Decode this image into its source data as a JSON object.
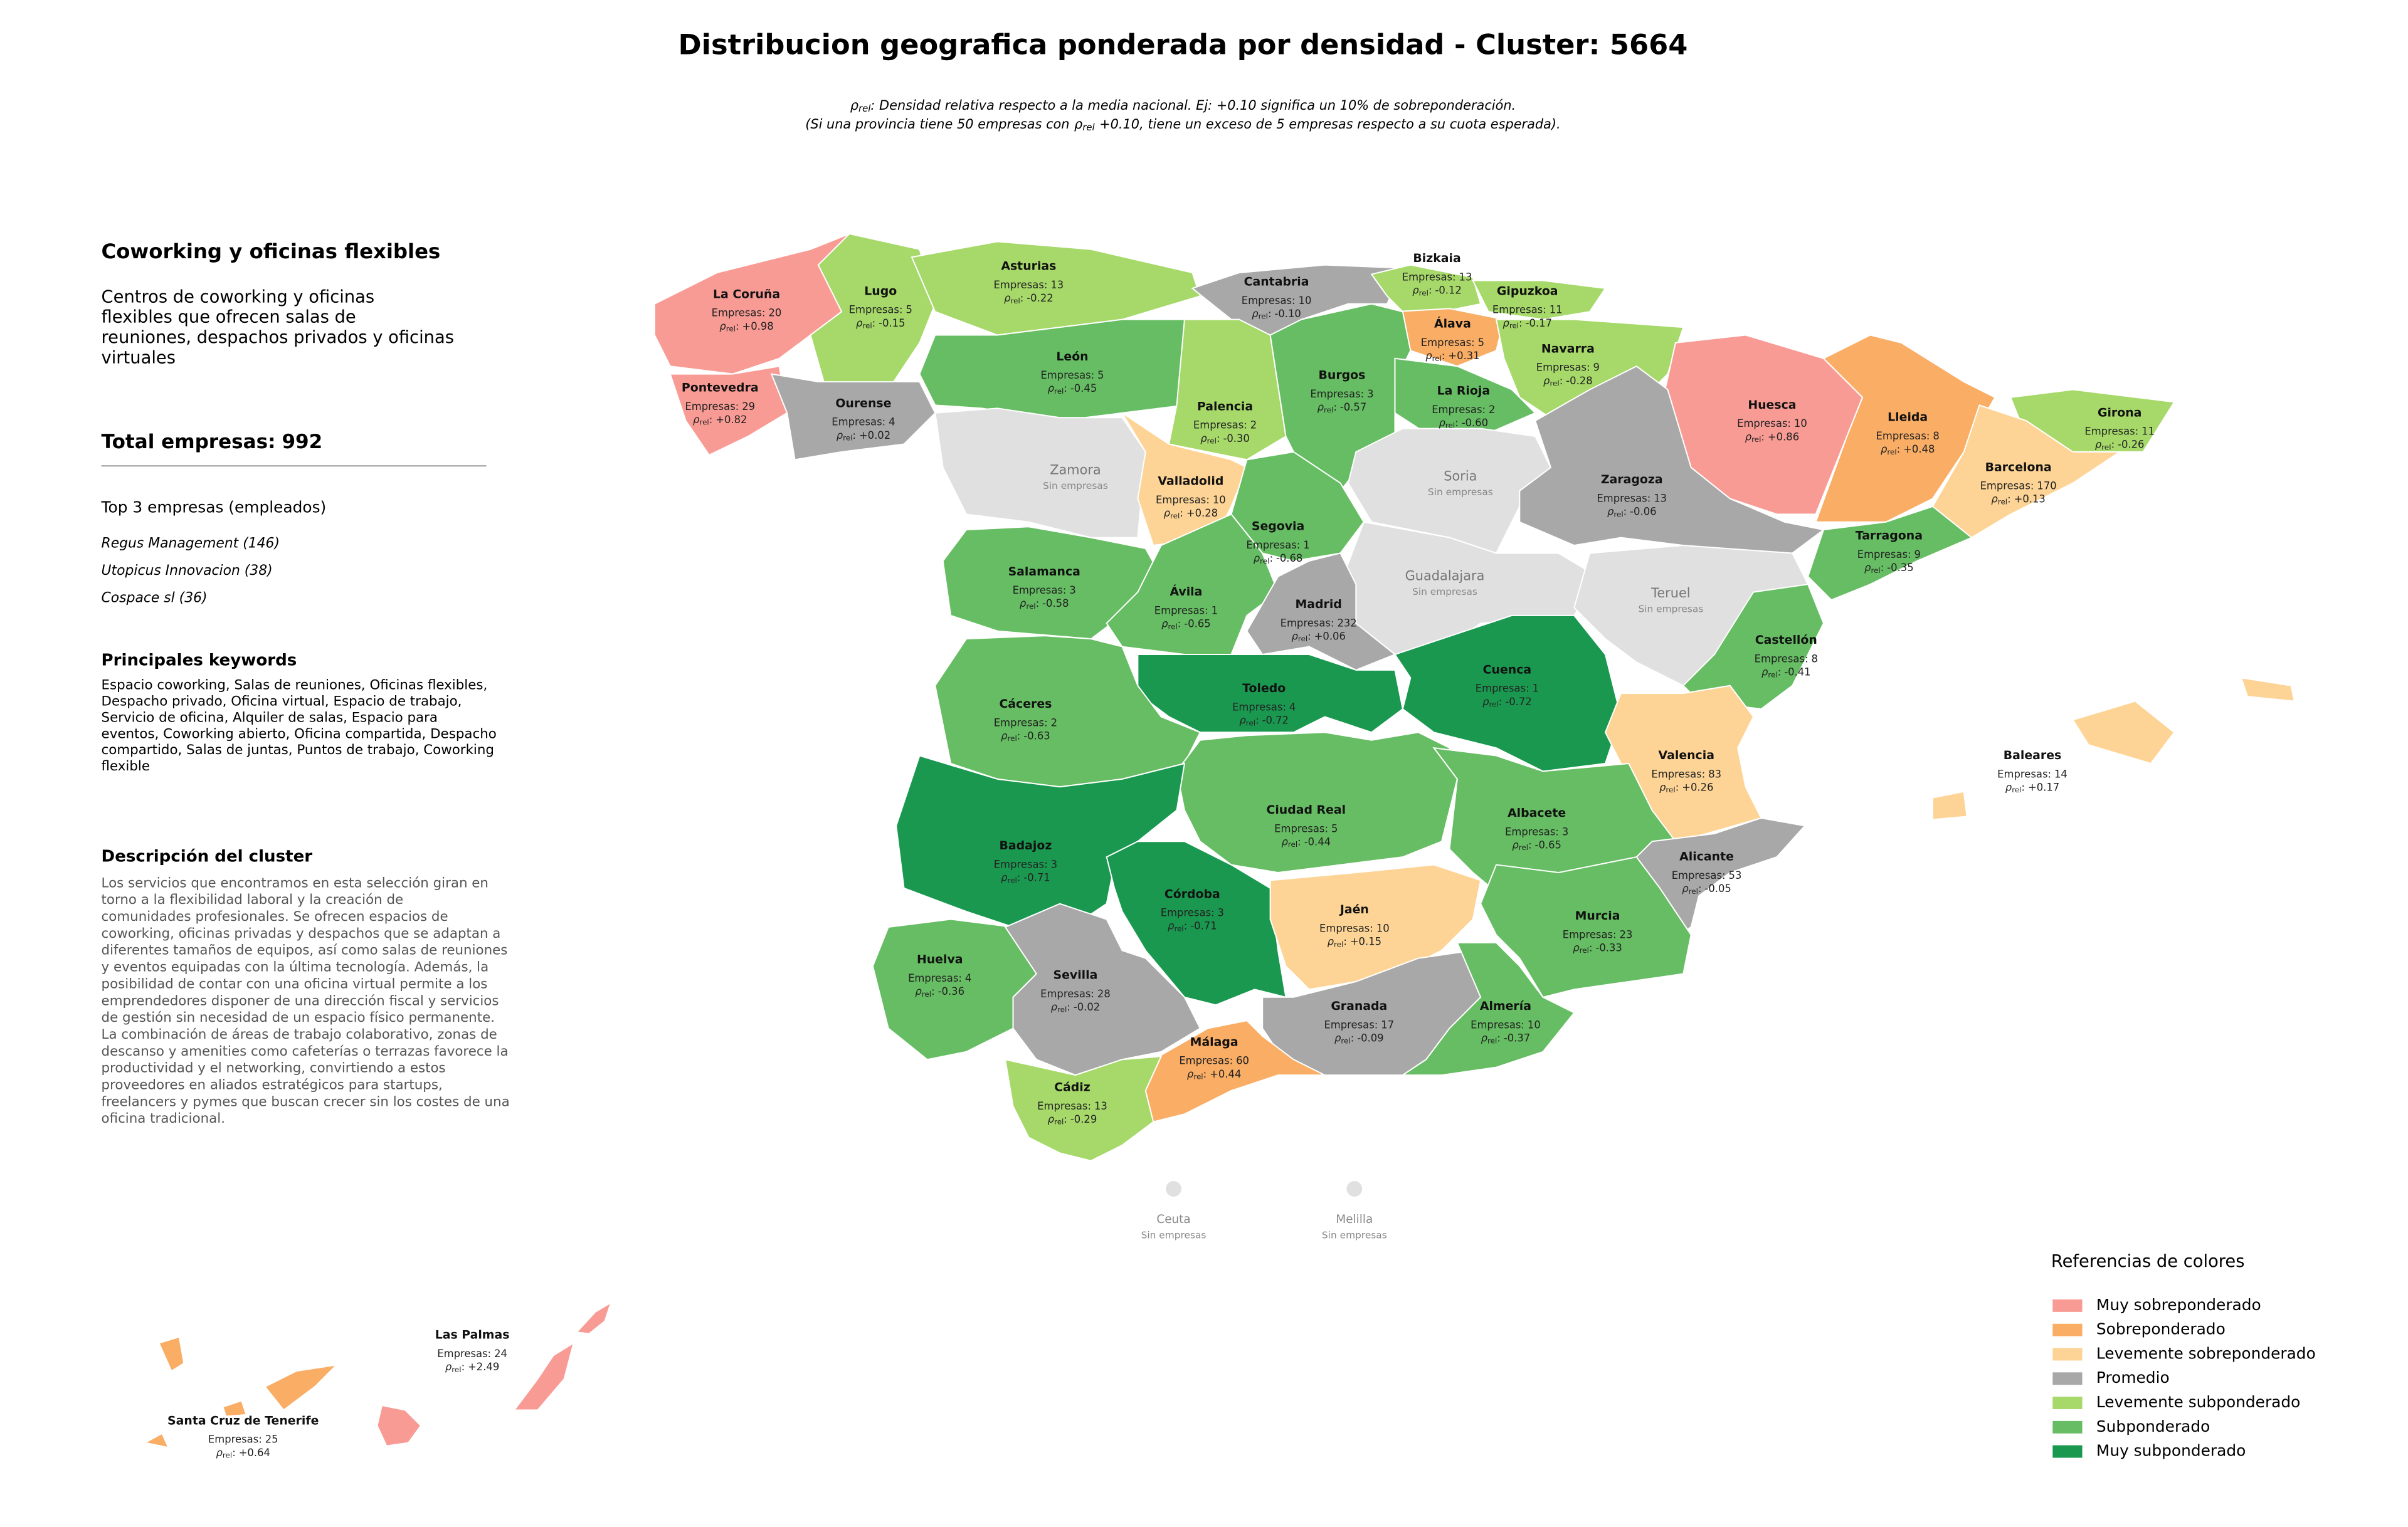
{
  "header": {
    "title": "Distribucion geografica ponderada por densidad - Cluster: 5664",
    "symbol": "ρ",
    "subscript": "rel",
    "note_line1": ": Densidad relativa respecto a la media nacional. Ej: +0.10 significa un 10% de sobreponderación.",
    "note_line2_start": "(Si una provincia tiene 50 empresas con",
    "note_line2_end": "+0.10, tiene un exceso de 5 empresas respecto a su cuota esperada)."
  },
  "panel": {
    "title": "Coworking y oficinas flexibles",
    "summary": [
      "Centros de coworking y oficinas",
      "flexibles que ofrecen salas de",
      "reuniones, despachos privados y oficinas",
      "virtuales"
    ],
    "total_label": "Total empresas:",
    "total": 992,
    "top_title": "Top 3 empresas (empleados)",
    "top": [
      "Regus Management (146)",
      "Utopicus Innovacion (38)",
      "Cospace sl (36)"
    ],
    "keywords_title": "Principales keywords",
    "keywords": [
      "Espacio coworking, Salas de reuniones, Oficinas flexibles,",
      "Despacho privado, Oficina virtual, Espacio de trabajo,",
      "Servicio de oficina, Alquiler de salas, Espacio para",
      "eventos, Coworking abierto, Oficina compartida, Despacho",
      "compartido, Salas de juntas, Puntos de trabajo, Coworking",
      "flexible"
    ],
    "description_title": "Descripción del cluster",
    "description": [
      "Los servicios que encontramos en esta selección giran en",
      "torno a la flexibilidad laboral y la creación de",
      "comunidades profesionales. Se ofrecen espacios de",
      "coworking, oficinas privadas y despachos que se adaptan a",
      "diferentes tamaños de equipos, así como salas de reuniones",
      "y eventos equipadas con la última tecnología. Además, la",
      "posibilidad de contar con una oficina virtual permite a los",
      "emprendedores disponer de una dirección fiscal y servicios",
      "de gestión sin necesidad de un espacio físico permanente.",
      "La combinación de áreas de trabajo colaborativo, zonas de",
      "descanso y amenities como cafeterías o terrazas favorece la",
      "productividad y el networking, convirtiendo a estos",
      "proveedores en aliados estratégicos para startups,",
      "freelancers y pymes que buscan crecer sin los costes de una",
      "oficina tradicional."
    ]
  },
  "map": {
    "count_label": "Empresas:",
    "empty_label": "Sin empresas",
    "empty_color": "#e0e0e0",
    "separator": ":",
    "provinces": [
      {
        "name": "La Coruña",
        "count": 20,
        "rho": "+0.98",
        "color": "#f99b95"
      },
      {
        "name": "Lugo",
        "count": 5,
        "rho": "-0.15",
        "color": "#a6d96a"
      },
      {
        "name": "Asturias",
        "count": 13,
        "rho": "-0.22",
        "color": "#a6d96a"
      },
      {
        "name": "Cantabria",
        "count": 10,
        "rho": "-0.10",
        "color": "#a8a8a8"
      },
      {
        "name": "Bizkaia",
        "count": 13,
        "rho": "-0.12",
        "color": "#a6d96a"
      },
      {
        "name": "Gipuzkoa",
        "count": 11,
        "rho": "-0.17",
        "color": "#a6d96a"
      },
      {
        "name": "Álava",
        "count": 5,
        "rho": "+0.31",
        "color": "#f9ad65"
      },
      {
        "name": "Navarra",
        "count": 9,
        "rho": "-0.28",
        "color": "#a6d96a"
      },
      {
        "name": "Pontevedra",
        "count": 29,
        "rho": "+0.82",
        "color": "#f99b95"
      },
      {
        "name": "Ourense",
        "count": 4,
        "rho": "+0.02",
        "color": "#a8a8a8"
      },
      {
        "name": "León",
        "count": 5,
        "rho": "-0.45",
        "color": "#66bd63"
      },
      {
        "name": "Palencia",
        "count": 2,
        "rho": "-0.30",
        "color": "#a6d96a"
      },
      {
        "name": "Burgos",
        "count": 3,
        "rho": "-0.57",
        "color": "#66bd63"
      },
      {
        "name": "La Rioja",
        "count": 2,
        "rho": "-0.60",
        "color": "#66bd63"
      },
      {
        "name": "Huesca",
        "count": 10,
        "rho": "+0.86",
        "color": "#f99b95"
      },
      {
        "name": "Lleida",
        "count": 8,
        "rho": "+0.48",
        "color": "#f9ad65"
      },
      {
        "name": "Girona",
        "count": 11,
        "rho": "-0.26",
        "color": "#a6d96a"
      },
      {
        "name": "Barcelona",
        "count": 170,
        "rho": "+0.13",
        "color": "#fdd495"
      },
      {
        "name": "Zamora"
      },
      {
        "name": "Soria"
      },
      {
        "name": "Zaragoza",
        "count": 13,
        "rho": "-0.06",
        "color": "#a8a8a8"
      },
      {
        "name": "Valladolid",
        "count": 10,
        "rho": "+0.28",
        "color": "#fdd495"
      },
      {
        "name": "Segovia",
        "count": 1,
        "rho": "-0.68",
        "color": "#66bd63"
      },
      {
        "name": "Tarragona",
        "count": 9,
        "rho": "-0.35",
        "color": "#66bd63"
      },
      {
        "name": "Salamanca",
        "count": 3,
        "rho": "-0.58",
        "color": "#66bd63"
      },
      {
        "name": "Guadalajara"
      },
      {
        "name": "Teruel"
      },
      {
        "name": "Ávila",
        "count": 1,
        "rho": "-0.65",
        "color": "#66bd63"
      },
      {
        "name": "Madrid",
        "count": 232,
        "rho": "+0.06",
        "color": "#a8a8a8"
      },
      {
        "name": "Castellón",
        "count": 8,
        "rho": "-0.41",
        "color": "#66bd63"
      },
      {
        "name": "Cuenca",
        "count": 1,
        "rho": "-0.72",
        "color": "#1a9850"
      },
      {
        "name": "Toledo",
        "count": 4,
        "rho": "-0.72",
        "color": "#1a9850"
      },
      {
        "name": "Cáceres",
        "count": 2,
        "rho": "-0.63",
        "color": "#66bd63"
      },
      {
        "name": "Valencia",
        "count": 83,
        "rho": "+0.26",
        "color": "#fdd495"
      },
      {
        "name": "Baleares",
        "count": 14,
        "rho": "+0.17",
        "color": "#fdd495"
      },
      {
        "name": "Ciudad Real",
        "count": 5,
        "rho": "-0.44",
        "color": "#66bd63"
      },
      {
        "name": "Albacete",
        "count": 3,
        "rho": "-0.65",
        "color": "#66bd63"
      },
      {
        "name": "Badajoz",
        "count": 3,
        "rho": "-0.71",
        "color": "#1a9850"
      },
      {
        "name": "Alicante",
        "count": 53,
        "rho": "-0.05",
        "color": "#a8a8a8"
      },
      {
        "name": "Córdoba",
        "count": 3,
        "rho": "-0.71",
        "color": "#1a9850"
      },
      {
        "name": "Jaén",
        "count": 10,
        "rho": "+0.15",
        "color": "#fdd495"
      },
      {
        "name": "Murcia",
        "count": 23,
        "rho": "-0.33",
        "color": "#66bd63"
      },
      {
        "name": "Huelva",
        "count": 4,
        "rho": "-0.36",
        "color": "#66bd63"
      },
      {
        "name": "Sevilla",
        "count": 28,
        "rho": "-0.02",
        "color": "#a8a8a8"
      },
      {
        "name": "Granada",
        "count": 17,
        "rho": "-0.09",
        "color": "#a8a8a8"
      },
      {
        "name": "Almería",
        "count": 10,
        "rho": "-0.37",
        "color": "#66bd63"
      },
      {
        "name": "Málaga",
        "count": 60,
        "rho": "+0.44",
        "color": "#f9ad65"
      },
      {
        "name": "Cádiz",
        "count": 13,
        "rho": "-0.29",
        "color": "#a6d96a"
      },
      {
        "name": "Las Palmas",
        "count": 24,
        "rho": "+2.49",
        "color": "#f99b95"
      },
      {
        "name": "Santa Cruz de Tenerife",
        "count": 25,
        "rho": "+0.64",
        "color": "#f9ad65"
      }
    ],
    "cities": [
      {
        "name": "Ceuta"
      },
      {
        "name": "Melilla"
      }
    ]
  },
  "legend": {
    "title": "Referencias de colores",
    "items": [
      {
        "name": "Muy sobreponderado",
        "color": "#f99b95"
      },
      {
        "name": "Sobreponderado",
        "color": "#f9ad65"
      },
      {
        "name": "Levemente sobreponderado",
        "color": "#fdd495"
      },
      {
        "name": "Promedio",
        "color": "#a8a8a8"
      },
      {
        "name": "Levemente subponderado",
        "color": "#a6d96a"
      },
      {
        "name": "Subponderado",
        "color": "#66bd63"
      },
      {
        "name": "Muy subponderado",
        "color": "#1a9850"
      }
    ]
  }
}
